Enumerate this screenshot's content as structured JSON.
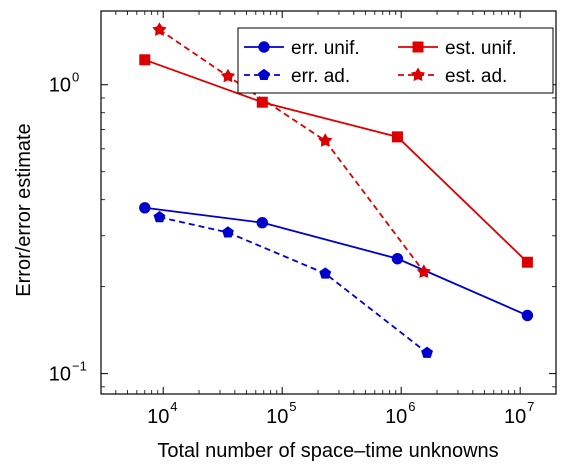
{
  "chart_data": {
    "type": "line",
    "title": "",
    "xlabel": "Total number of space–time unknowns",
    "ylabel": "Error/error estimate",
    "xscale": "log",
    "yscale": "log",
    "xlim": [
      3000,
      20000000
    ],
    "ylim": [
      0.085,
      1.8
    ],
    "xticks": [
      {
        "value": 10000,
        "base": "10",
        "exp": "4"
      },
      {
        "value": 100000,
        "base": "10",
        "exp": "5"
      },
      {
        "value": 1000000,
        "base": "10",
        "exp": "6"
      },
      {
        "value": 10000000,
        "base": "10",
        "exp": "7"
      }
    ],
    "yticks": [
      {
        "value": 1,
        "base": "10",
        "exp": "0"
      },
      {
        "value": 0.1,
        "base": "10",
        "exp": "−1"
      }
    ],
    "grid": false,
    "legend_position": "top-right",
    "series": [
      {
        "name": "err. unif.",
        "color": "#0000cc",
        "line": "solid",
        "marker": "circle",
        "x": [
          7000,
          68000,
          930000,
          11500000
        ],
        "y": [
          0.375,
          0.333,
          0.25,
          0.159
        ]
      },
      {
        "name": "est. unif.",
        "color": "#dd0000",
        "line": "solid",
        "marker": "square",
        "x": [
          7000,
          68000,
          930000,
          11500000
        ],
        "y": [
          1.22,
          0.87,
          0.66,
          0.243
        ]
      },
      {
        "name": "err. ad.",
        "color": "#0000cc",
        "line": "dashed",
        "marker": "pentagon",
        "x": [
          9300,
          35000,
          230000,
          1650000
        ],
        "y": [
          0.348,
          0.308,
          0.222,
          0.118
        ]
      },
      {
        "name": "est. ad.",
        "color": "#dd0000",
        "line": "dashed",
        "marker": "star",
        "x": [
          9300,
          35000,
          230000,
          1550000
        ],
        "y": [
          1.55,
          1.07,
          0.64,
          0.225
        ]
      }
    ]
  }
}
